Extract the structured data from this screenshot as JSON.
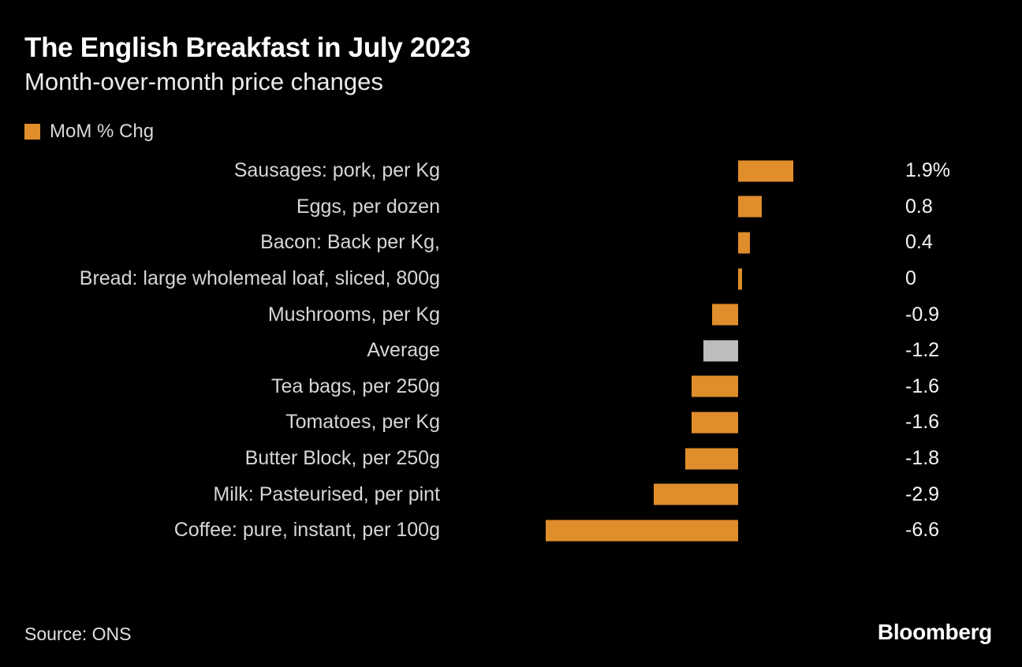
{
  "header": {
    "title": "The English Breakfast in July 2023",
    "subtitle": "Month-over-month price changes"
  },
  "legend": {
    "label": "MoM % Chg",
    "swatch_color": "#DF8E2B"
  },
  "chart_data": {
    "type": "bar",
    "orientation": "horizontal",
    "title": "The English Breakfast in July 2023",
    "subtitle": "Month-over-month price changes",
    "series_name": "MoM % Chg",
    "categories": [
      "Sausages: pork, per Kg",
      "Eggs, per dozen",
      "Bacon: Back per Kg,",
      "Bread: large wholemeal loaf, sliced, 800g",
      "Mushrooms, per Kg",
      "Average",
      "Tea bags, per 250g",
      "Tomatoes, per Kg",
      "Butter Block, per 250g",
      "Milk: Pasteurised, per pint",
      "Coffee: pure, instant, per 100g"
    ],
    "values": [
      1.9,
      0.8,
      0.4,
      0,
      -0.9,
      -1.2,
      -1.6,
      -1.6,
      -1.8,
      -2.9,
      -6.6
    ],
    "value_labels": [
      "1.9%",
      "0.8",
      "0.4",
      "0",
      "-0.9",
      "-1.2",
      "-1.6",
      "-1.6",
      "-1.8",
      "-2.9",
      "-6.6"
    ],
    "bar_color": "#DF8E2B",
    "highlight_category": "Average",
    "highlight_color": "#BDBDBD",
    "xlim": [
      -6.6,
      1.9
    ],
    "grid": false,
    "legend_position": "top-left",
    "background_color": "#000000"
  },
  "footer": {
    "source": "Source: ONS",
    "brand": "Bloomberg"
  }
}
